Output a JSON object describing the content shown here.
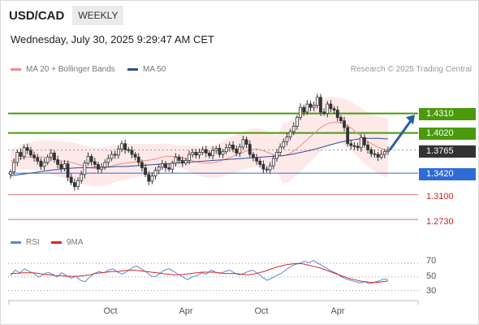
{
  "header": {
    "symbol": "USD/CAD",
    "period": "WEEKLY",
    "datetime": "Wednesday, July 30, 2025 9:29:47 AM CET",
    "source": "Research © 2025 Trading Central"
  },
  "legend": {
    "ma20_label": "MA 20 + Bollinger Bands",
    "ma50_label": "MA 50",
    "rsi_label": "RSI",
    "ma9_label": "9MA"
  },
  "colors": {
    "up_candle": "#333333",
    "down_candle": "#333333",
    "resistance": "#4a9a0c",
    "support": "#2f6bd6",
    "minor_level": "#e07070",
    "ma20": "#f08a8a",
    "ma50": "#2e4f8c",
    "bollinger_fill": "#fde2e2",
    "rsi": "#5b87d9",
    "rsi_ma9": "#d42a2a",
    "arrow": "#2a5ea8",
    "current_price_bg": "#333333"
  },
  "chart_data": {
    "type": "candlestick",
    "instrument": "USD/CAD",
    "timeframe": "weekly",
    "x_ticks": [
      "Oct",
      "Apr",
      "Oct",
      "Apr"
    ],
    "price_levels": [
      {
        "label": "1.4310",
        "value": 1.431,
        "kind": "resistance"
      },
      {
        "label": "1.4020",
        "value": 1.402,
        "kind": "resistance"
      },
      {
        "label": "1.3765",
        "value": 1.3765,
        "kind": "current"
      },
      {
        "label": "1.3420",
        "value": 1.342,
        "kind": "support"
      },
      {
        "label": "1.3100",
        "value": 1.31,
        "kind": "minor"
      },
      {
        "label": "1.2730",
        "value": 1.273,
        "kind": "minor"
      }
    ],
    "price_ylim": [
      1.255,
      1.485
    ],
    "close_series": [
      1.344,
      1.358,
      1.373,
      1.367,
      1.38,
      1.376,
      1.369,
      1.365,
      1.36,
      1.352,
      1.358,
      1.366,
      1.372,
      1.362,
      1.355,
      1.349,
      1.356,
      1.336,
      1.328,
      1.322,
      1.331,
      1.34,
      1.357,
      1.367,
      1.359,
      1.355,
      1.348,
      1.351,
      1.358,
      1.364,
      1.37,
      1.369,
      1.378,
      1.386,
      1.377,
      1.376,
      1.37,
      1.366,
      1.358,
      1.35,
      1.34,
      1.33,
      1.338,
      1.346,
      1.351,
      1.356,
      1.35,
      1.348,
      1.357,
      1.366,
      1.361,
      1.357,
      1.361,
      1.37,
      1.373,
      1.369,
      1.373,
      1.377,
      1.372,
      1.368,
      1.376,
      1.379,
      1.37,
      1.374,
      1.38,
      1.384,
      1.378,
      1.372,
      1.381,
      1.392,
      1.385,
      1.37,
      1.365,
      1.36,
      1.355,
      1.348,
      1.347,
      1.353,
      1.364,
      1.373,
      1.381,
      1.389,
      1.396,
      1.404,
      1.412,
      1.425,
      1.44,
      1.433,
      1.445,
      1.44,
      1.443,
      1.455,
      1.433,
      1.431,
      1.445,
      1.438,
      1.436,
      1.425,
      1.42,
      1.41,
      1.386,
      1.383,
      1.382,
      1.38,
      1.395,
      1.384,
      1.377,
      1.371,
      1.37,
      1.366,
      1.37,
      1.374,
      1.376
    ],
    "ma20_series": [
      1.36,
      1.362,
      1.364,
      1.366,
      1.366,
      1.366,
      1.366,
      1.365,
      1.363,
      1.361,
      1.36,
      1.359,
      1.357,
      1.355,
      1.352,
      1.35,
      1.349,
      1.349,
      1.35,
      1.352,
      1.354,
      1.356,
      1.357,
      1.358,
      1.359,
      1.36,
      1.361,
      1.362,
      1.364,
      1.366,
      1.367,
      1.367,
      1.366,
      1.364,
      1.362,
      1.36,
      1.358,
      1.357,
      1.357,
      1.358,
      1.36,
      1.363,
      1.366,
      1.369,
      1.372,
      1.375,
      1.377,
      1.378,
      1.376,
      1.373,
      1.37,
      1.368,
      1.368,
      1.37,
      1.375,
      1.381,
      1.388,
      1.395,
      1.402,
      1.409,
      1.414,
      1.417,
      1.418,
      1.417,
      1.414,
      1.409,
      1.402,
      1.396,
      1.39,
      1.385,
      1.381,
      1.378,
      1.376
    ],
    "ma50_series": [
      1.338,
      1.34,
      1.342,
      1.344,
      1.346,
      1.348,
      1.349,
      1.35,
      1.35,
      1.351,
      1.351,
      1.352,
      1.352,
      1.353,
      1.354,
      1.355,
      1.356,
      1.357,
      1.358,
      1.359,
      1.36,
      1.361,
      1.362,
      1.363,
      1.364,
      1.365,
      1.366,
      1.367,
      1.368,
      1.37,
      1.373,
      1.376,
      1.38,
      1.384,
      1.388,
      1.391,
      1.393,
      1.394,
      1.394,
      1.393
    ],
    "rsi_ticks": [
      70,
      50,
      30
    ],
    "rsi_ylim": [
      20,
      82
    ],
    "rsi_series": [
      52,
      60,
      56,
      62,
      58,
      55,
      50,
      53,
      57,
      54,
      50,
      56,
      52,
      48,
      51,
      45,
      43,
      50,
      55,
      58,
      56,
      60,
      62,
      57,
      54,
      58,
      63,
      66,
      62,
      58,
      52,
      50,
      55,
      60,
      62,
      58,
      54,
      50,
      46,
      50,
      52,
      56,
      54,
      60,
      57,
      55,
      58,
      60,
      56,
      53,
      55,
      58,
      60,
      55,
      50,
      45,
      48,
      52,
      55,
      60,
      65,
      68,
      70,
      73,
      71,
      74,
      70,
      66,
      62,
      58,
      55,
      50,
      47,
      45,
      43,
      41,
      43,
      40,
      42,
      44,
      47,
      46
    ],
    "rsi_ma9_series": [
      55,
      55,
      56,
      56,
      56,
      55,
      54,
      53,
      52,
      52,
      51,
      51,
      51,
      52,
      53,
      55,
      56,
      57,
      58,
      58,
      59,
      60,
      60,
      59,
      58,
      57,
      56,
      55,
      54,
      53,
      53,
      54,
      55,
      56,
      57,
      57,
      57,
      56,
      55,
      55,
      55,
      54,
      53,
      54,
      56,
      58,
      61,
      64,
      66,
      68,
      69,
      70,
      69,
      67,
      65,
      63,
      60,
      57,
      54,
      51,
      48,
      46,
      44,
      43,
      42,
      42,
      43,
      44
    ]
  }
}
